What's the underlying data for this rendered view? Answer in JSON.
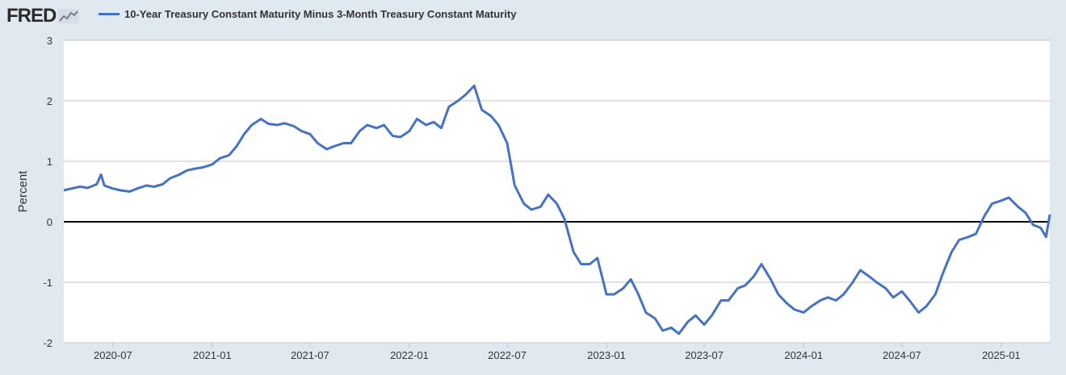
{
  "header": {
    "logo_text": "FRED",
    "series_title": "10-Year Treasury Constant Maturity Minus 3-Month Treasury Constant Maturity"
  },
  "colors": {
    "background": "#e1e9f0",
    "plot_background": "#ffffff",
    "series": "#4572c4",
    "grid": "#c4c4c4",
    "zero_line": "#000000"
  },
  "chart_data": {
    "type": "line",
    "ylabel": "Percent",
    "ylim": [
      -2,
      3
    ],
    "yticks": [
      -2,
      -1,
      0,
      1,
      2,
      3
    ],
    "xlim": [
      "2020-04-01",
      "2025-04-01"
    ],
    "xticks": [
      "2020-07",
      "2021-01",
      "2021-07",
      "2022-01",
      "2022-07",
      "2023-01",
      "2023-07",
      "2024-01",
      "2024-07",
      "2025-01"
    ],
    "grid": true,
    "reference_line": 0,
    "series": [
      {
        "name": "10-Year Treasury Constant Maturity Minus 3-Month Treasury Constant Maturity",
        "points": [
          [
            "2020-04-01",
            0.52
          ],
          [
            "2020-04-15",
            0.55
          ],
          [
            "2020-05-01",
            0.58
          ],
          [
            "2020-05-15",
            0.56
          ],
          [
            "2020-06-01",
            0.62
          ],
          [
            "2020-06-09",
            0.78
          ],
          [
            "2020-06-15",
            0.6
          ],
          [
            "2020-07-01",
            0.55
          ],
          [
            "2020-07-15",
            0.52
          ],
          [
            "2020-08-01",
            0.5
          ],
          [
            "2020-08-15",
            0.55
          ],
          [
            "2020-09-01",
            0.6
          ],
          [
            "2020-09-15",
            0.58
          ],
          [
            "2020-10-01",
            0.62
          ],
          [
            "2020-10-15",
            0.72
          ],
          [
            "2020-11-01",
            0.78
          ],
          [
            "2020-11-15",
            0.85
          ],
          [
            "2020-12-01",
            0.88
          ],
          [
            "2020-12-15",
            0.9
          ],
          [
            "2021-01-01",
            0.95
          ],
          [
            "2021-01-15",
            1.05
          ],
          [
            "2021-02-01",
            1.1
          ],
          [
            "2021-02-15",
            1.25
          ],
          [
            "2021-03-01",
            1.45
          ],
          [
            "2021-03-15",
            1.6
          ],
          [
            "2021-04-01",
            1.7
          ],
          [
            "2021-04-15",
            1.62
          ],
          [
            "2021-05-01",
            1.6
          ],
          [
            "2021-05-15",
            1.63
          ],
          [
            "2021-06-01",
            1.58
          ],
          [
            "2021-06-15",
            1.5
          ],
          [
            "2021-07-01",
            1.45
          ],
          [
            "2021-07-15",
            1.3
          ],
          [
            "2021-08-01",
            1.2
          ],
          [
            "2021-08-15",
            1.25
          ],
          [
            "2021-09-01",
            1.3
          ],
          [
            "2021-09-15",
            1.3
          ],
          [
            "2021-10-01",
            1.5
          ],
          [
            "2021-10-15",
            1.6
          ],
          [
            "2021-11-01",
            1.55
          ],
          [
            "2021-11-15",
            1.6
          ],
          [
            "2021-12-01",
            1.42
          ],
          [
            "2021-12-15",
            1.4
          ],
          [
            "2022-01-01",
            1.5
          ],
          [
            "2022-01-15",
            1.7
          ],
          [
            "2022-02-01",
            1.6
          ],
          [
            "2022-02-15",
            1.65
          ],
          [
            "2022-03-01",
            1.55
          ],
          [
            "2022-03-15",
            1.9
          ],
          [
            "2022-04-01",
            2.0
          ],
          [
            "2022-04-15",
            2.1
          ],
          [
            "2022-05-01",
            2.25
          ],
          [
            "2022-05-15",
            1.85
          ],
          [
            "2022-06-01",
            1.75
          ],
          [
            "2022-06-15",
            1.6
          ],
          [
            "2022-07-01",
            1.3
          ],
          [
            "2022-07-15",
            0.6
          ],
          [
            "2022-08-01",
            0.3
          ],
          [
            "2022-08-15",
            0.2
          ],
          [
            "2022-09-01",
            0.25
          ],
          [
            "2022-09-15",
            0.45
          ],
          [
            "2022-10-01",
            0.3
          ],
          [
            "2022-10-15",
            0.05
          ],
          [
            "2022-11-01",
            -0.5
          ],
          [
            "2022-11-15",
            -0.7
          ],
          [
            "2022-12-01",
            -0.7
          ],
          [
            "2022-12-15",
            -0.6
          ],
          [
            "2023-01-01",
            -1.2
          ],
          [
            "2023-01-15",
            -1.2
          ],
          [
            "2023-02-01",
            -1.1
          ],
          [
            "2023-02-15",
            -0.95
          ],
          [
            "2023-03-01",
            -1.2
          ],
          [
            "2023-03-15",
            -1.5
          ],
          [
            "2023-04-01",
            -1.6
          ],
          [
            "2023-04-15",
            -1.8
          ],
          [
            "2023-05-01",
            -1.75
          ],
          [
            "2023-05-15",
            -1.85
          ],
          [
            "2023-06-01",
            -1.65
          ],
          [
            "2023-06-15",
            -1.55
          ],
          [
            "2023-07-01",
            -1.7
          ],
          [
            "2023-07-15",
            -1.55
          ],
          [
            "2023-08-01",
            -1.3
          ],
          [
            "2023-08-15",
            -1.3
          ],
          [
            "2023-09-01",
            -1.1
          ],
          [
            "2023-09-15",
            -1.05
          ],
          [
            "2023-10-01",
            -0.9
          ],
          [
            "2023-10-15",
            -0.7
          ],
          [
            "2023-11-01",
            -0.95
          ],
          [
            "2023-11-15",
            -1.2
          ],
          [
            "2023-12-01",
            -1.35
          ],
          [
            "2023-12-15",
            -1.45
          ],
          [
            "2024-01-01",
            -1.5
          ],
          [
            "2024-01-15",
            -1.4
          ],
          [
            "2024-02-01",
            -1.3
          ],
          [
            "2024-02-15",
            -1.25
          ],
          [
            "2024-03-01",
            -1.3
          ],
          [
            "2024-03-15",
            -1.2
          ],
          [
            "2024-04-01",
            -1.0
          ],
          [
            "2024-04-15",
            -0.8
          ],
          [
            "2024-05-01",
            -0.9
          ],
          [
            "2024-05-15",
            -1.0
          ],
          [
            "2024-06-01",
            -1.1
          ],
          [
            "2024-06-15",
            -1.25
          ],
          [
            "2024-07-01",
            -1.15
          ],
          [
            "2024-07-15",
            -1.3
          ],
          [
            "2024-08-01",
            -1.5
          ],
          [
            "2024-08-15",
            -1.4
          ],
          [
            "2024-09-01",
            -1.2
          ],
          [
            "2024-09-15",
            -0.85
          ],
          [
            "2024-10-01",
            -0.5
          ],
          [
            "2024-10-15",
            -0.3
          ],
          [
            "2024-11-01",
            -0.25
          ],
          [
            "2024-11-15",
            -0.2
          ],
          [
            "2024-12-01",
            0.1
          ],
          [
            "2024-12-15",
            0.3
          ],
          [
            "2025-01-01",
            0.35
          ],
          [
            "2025-01-15",
            0.4
          ],
          [
            "2025-02-01",
            0.25
          ],
          [
            "2025-02-15",
            0.15
          ],
          [
            "2025-03-01",
            -0.05
          ],
          [
            "2025-03-15",
            -0.1
          ],
          [
            "2025-03-25",
            -0.25
          ],
          [
            "2025-04-01",
            0.12
          ]
        ]
      }
    ]
  }
}
